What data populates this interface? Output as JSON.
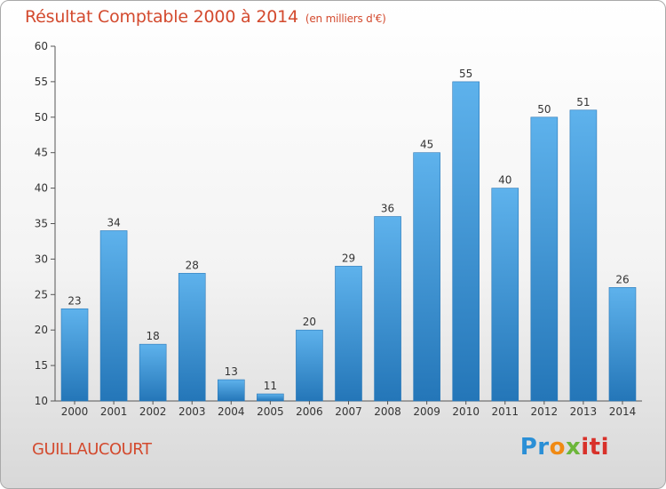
{
  "header": {
    "title": "Résultat Comptable 2000 à 2014",
    "subtitle": "(en milliers d'€)"
  },
  "footer": {
    "town": "GUILLAUCOURT",
    "logo": [
      "Pr",
      "o",
      "x",
      "iti"
    ]
  },
  "colors": {
    "title": "#d34a2e",
    "bar_top": "#5eb2ec",
    "bar_bottom": "#2476b8",
    "axis": "#555555",
    "grid": "#cccccc"
  },
  "chart_data": {
    "type": "bar",
    "title": "Résultat Comptable 2000 à 2014",
    "subtitle": "(en milliers d'€)",
    "categories": [
      "2000",
      "2001",
      "2002",
      "2003",
      "2004",
      "2005",
      "2006",
      "2007",
      "2008",
      "2009",
      "2010",
      "2011",
      "2012",
      "2013",
      "2014"
    ],
    "values": [
      23,
      34,
      18,
      28,
      13,
      11,
      20,
      29,
      36,
      45,
      55,
      40,
      50,
      51,
      26
    ],
    "ylim": [
      10,
      60
    ],
    "yticks": [
      10,
      15,
      20,
      25,
      30,
      35,
      40,
      45,
      50,
      55,
      60
    ],
    "grid": false,
    "data_labels": true
  }
}
